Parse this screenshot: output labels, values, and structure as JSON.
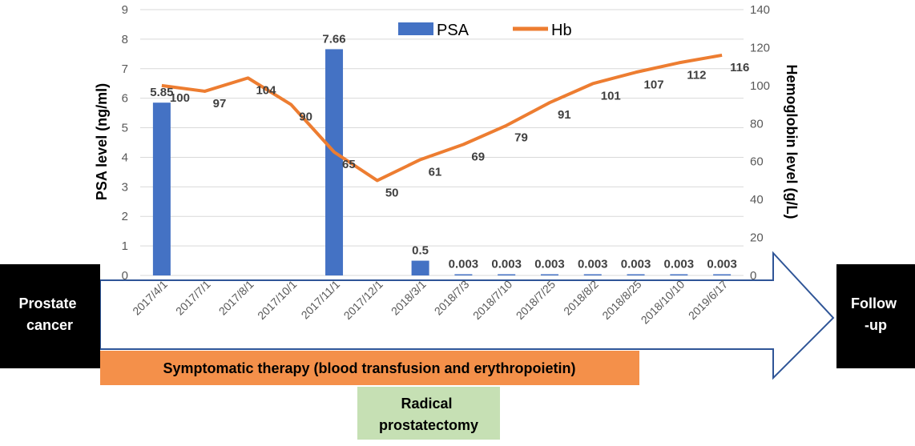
{
  "chart_data": {
    "type": "bar",
    "categories": [
      "2017/4/1",
      "2017/7/1",
      "2017/8/1",
      "2017/10/1",
      "2017/11/1",
      "2017/12/1",
      "2018/3/1",
      "2018/7/3",
      "2018/7/10",
      "2018/7/25",
      "2018/8/2",
      "2018/8/25",
      "2018/10/10",
      "2019/6/17"
    ],
    "series": [
      {
        "name": "PSA",
        "type": "bar",
        "axis": "left",
        "color": "#4472c4",
        "values": [
          5.85,
          null,
          null,
          null,
          7.66,
          null,
          0.5,
          0.003,
          0.003,
          0.003,
          0.003,
          0.003,
          0.003,
          0.003
        ],
        "labels": [
          "5.85",
          "",
          "",
          "",
          "7.66",
          "",
          "0.5",
          "0.003",
          "0.003",
          "0.003",
          "0.003",
          "0.003",
          "0.003",
          "0.003"
        ]
      },
      {
        "name": "Hb",
        "type": "line",
        "axis": "right",
        "color": "#ed7d31",
        "values": [
          100,
          97,
          104,
          90,
          65,
          50,
          61,
          69,
          79,
          91,
          101,
          107,
          112,
          116
        ],
        "labels": [
          "100",
          "97",
          "104",
          "90",
          "65",
          "50",
          "61",
          "69",
          "79",
          "91",
          "101",
          "107",
          "112",
          "116"
        ]
      }
    ],
    "ylabel": "PSA level (ng/ml)",
    "ylabel_right": "Hemoglobin level (g/L)",
    "ylim": [
      0,
      9
    ],
    "ylim_right": [
      0,
      140
    ],
    "yticks": [
      "0",
      "1",
      "2",
      "3",
      "4",
      "5",
      "6",
      "7",
      "8",
      "9"
    ],
    "yticks_right": [
      "0",
      "20",
      "40",
      "60",
      "80",
      "100",
      "120",
      "140"
    ],
    "grid": true,
    "legend": "top-center"
  },
  "timeline": {
    "start_label": "Prostate cancer",
    "end_label": "Follow -up",
    "therapy_label": "Symptomatic therapy (blood transfusion and erythropoietin)",
    "surgery_label": "Radical prostatectomy",
    "colors": {
      "box": "#000000",
      "arrow_stroke": "#2f5597",
      "therapy": "#f4904a",
      "surgery": "#c6e0b4"
    }
  }
}
